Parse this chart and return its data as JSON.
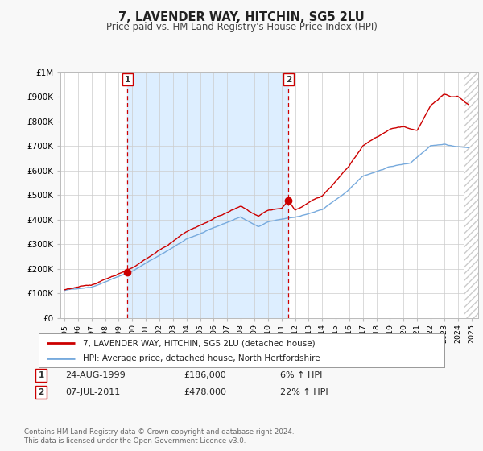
{
  "title": "7, LAVENDER WAY, HITCHIN, SG5 2LU",
  "subtitle": "Price paid vs. HM Land Registry's House Price Index (HPI)",
  "legend_line1": "7, LAVENDER WAY, HITCHIN, SG5 2LU (detached house)",
  "legend_line2": "HPI: Average price, detached house, North Hertfordshire",
  "footer1": "Contains HM Land Registry data © Crown copyright and database right 2024.",
  "footer2": "This data is licensed under the Open Government Licence v3.0.",
  "sale1_date": "24-AUG-1999",
  "sale1_price": "£186,000",
  "sale1_hpi": "6% ↑ HPI",
  "sale1_year": 1999.65,
  "sale1_value": 186000,
  "sale2_date": "07-JUL-2011",
  "sale2_price": "£478,000",
  "sale2_hpi": "22% ↑ HPI",
  "sale2_year": 2011.52,
  "sale2_value": 478000,
  "red_color": "#cc0000",
  "blue_color": "#77aadd",
  "shaded_color": "#ddeeff",
  "hatch_color": "#cccccc",
  "vline_color": "#cc0000",
  "grid_color": "#cccccc",
  "bg_color": "#f8f8f8",
  "plot_bg": "#ffffff",
  "ylim": [
    0,
    1000000
  ],
  "xlim_start": 1994.7,
  "xlim_end": 2025.5,
  "yticks": [
    0,
    100000,
    200000,
    300000,
    400000,
    500000,
    600000,
    700000,
    800000,
    900000,
    1000000
  ],
  "ytick_labels": [
    "£0",
    "£100K",
    "£200K",
    "£300K",
    "£400K",
    "£500K",
    "£600K",
    "£700K",
    "£800K",
    "£900K",
    "£1M"
  ]
}
